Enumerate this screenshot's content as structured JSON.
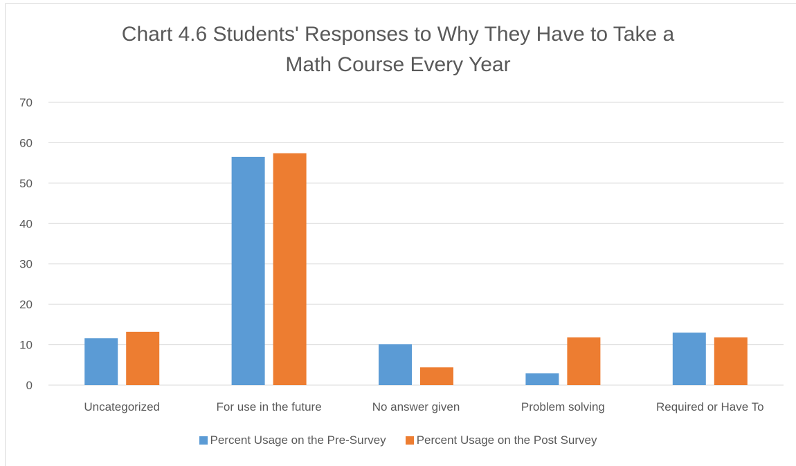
{
  "chart_data": {
    "type": "bar",
    "title_lines": [
      "Chart 4.6 Students' Responses to Why They Have to Take a",
      "Math Course Every Year"
    ],
    "categories": [
      "Uncategorized",
      "For use in the future",
      "No answer given",
      "Problem solving",
      "Required or Have To"
    ],
    "series": [
      {
        "name": "Percent Usage on the Pre-Survey",
        "color": "#5b9bd5",
        "values": [
          11.6,
          56.5,
          10.1,
          2.9,
          13.0
        ]
      },
      {
        "name": "Percent Usage on the Post Survey",
        "color": "#ed7d31",
        "values": [
          13.2,
          57.4,
          4.4,
          11.8,
          11.8
        ]
      }
    ],
    "ylim": [
      0,
      70
    ],
    "yticks": [
      0,
      10,
      20,
      30,
      40,
      50,
      60,
      70
    ],
    "grid": true,
    "legend_position": "bottom"
  }
}
